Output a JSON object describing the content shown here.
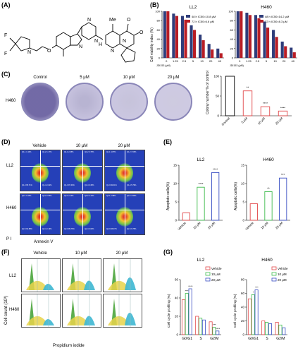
{
  "panel_labels": {
    "A": "(A)",
    "B": "(B)",
    "C": "(C)",
    "D": "(D)",
    "E": "(E)",
    "F": "(F)",
    "G": "(G)"
  },
  "chemistry": {
    "F1": "F",
    "F2": "F",
    "N1": "N",
    "N2": "N",
    "N3": "N",
    "N4": "N",
    "N5": "N",
    "N6": "N",
    "O1": "O",
    "O2": "O",
    "O3": "O",
    "H": "H",
    "Me": "Me"
  },
  "B": {
    "ylabel": "Cell viability index (%)",
    "xlabel": "JDI153 (μM)",
    "categories": [
      "0",
      "1.25",
      "2.5",
      "5",
      "10",
      "20",
      "40"
    ],
    "yticks": [
      "0",
      "20",
      "40",
      "60",
      "80",
      "100"
    ],
    "colors": {
      "h48": "#2f3d7a",
      "h72": "#b81d25"
    },
    "charts": [
      {
        "title": "LL2",
        "legend": [
          "48 h IC50=10.8 μM",
          "72 h IC50=6.6 μM"
        ],
        "series": [
          {
            "name": "48 h IC50=10.8 μM",
            "values": [
              100,
              95,
              90,
              70,
              50,
              30,
              20
            ]
          },
          {
            "name": "72 h IC50=6.6 μM",
            "values": [
              100,
              90,
              82,
              60,
              38,
              18,
              10
            ]
          }
        ]
      },
      {
        "title": "H460",
        "legend": [
          "48 h IC50=14.2 μM",
          "72 h IC50=8.3 μM"
        ],
        "series": [
          {
            "name": "48 h IC50=14.2 μM",
            "values": [
              100,
              97,
              92,
              78,
              60,
              35,
              22
            ]
          },
          {
            "name": "72 h IC50=8.3 μM",
            "values": [
              100,
              92,
              85,
              65,
              45,
              25,
              12
            ]
          }
        ]
      }
    ]
  },
  "C": {
    "row_label": "H460",
    "columns": [
      "Control",
      "5 μM",
      "10 μM",
      "20 μM"
    ],
    "colony_coverage": [
      1.0,
      0.3,
      0.15,
      0.08
    ]
  },
  "chart_data": [
    {
      "type": "bar",
      "title": "",
      "ylabel": "Colony number % of control",
      "categories": [
        "Control",
        "5 μM",
        "10 μM",
        "20 μM"
      ],
      "values": [
        100,
        63,
        23,
        12
      ],
      "ylim": [
        0,
        100
      ],
      "significance": [
        "",
        "**",
        "****",
        "****"
      ]
    },
    {
      "type": "bar",
      "title": "LL2",
      "ylabel": "Apoptotic cells(%)",
      "categories": [
        "Vehicle",
        "10 μM",
        "20 μM"
      ],
      "values": [
        2,
        9,
        13
      ],
      "ylim": [
        0,
        15
      ],
      "yticks": [
        "0",
        "5",
        "10",
        "15"
      ],
      "significance": [
        "",
        "****",
        "****"
      ]
    },
    {
      "type": "bar",
      "title": "H460",
      "ylabel": "Apoptotic cells(%)",
      "categories": [
        "Vehicle",
        "10 μM",
        "20 μM"
      ],
      "values": [
        4.5,
        7.8,
        11.5
      ],
      "ylim": [
        0,
        15
      ],
      "yticks": [
        "0",
        "5",
        "10",
        "15"
      ],
      "significance": [
        "",
        "**",
        "***"
      ]
    },
    {
      "type": "bar",
      "title": "LL2",
      "ylabel": "Cell cycle profiling (%)",
      "categories": [
        "G0/G1",
        "S",
        "G2/M"
      ],
      "yticks": [
        "0",
        "20",
        "40",
        "60"
      ],
      "ylim": [
        0,
        60
      ],
      "series": [
        {
          "name": "Vehicle",
          "values": [
            38,
            20,
            14
          ]
        },
        {
          "name": "10 μM",
          "values": [
            45,
            18,
            8
          ]
        },
        {
          "name": "20 μM",
          "values": [
            50,
            16,
            4
          ]
        }
      ],
      "significance": [
        [
          "",
          "****",
          "****"
        ],
        [
          "",
          "",
          ""
        ],
        [
          "",
          "***",
          "****"
        ]
      ]
    },
    {
      "type": "bar",
      "title": "H460",
      "ylabel": "Cell cycle profiling (%)",
      "categories": [
        "G0/G1",
        "S",
        "G2/M"
      ],
      "yticks": [
        "0",
        "20",
        "40",
        "60",
        "80"
      ],
      "ylim": [
        0,
        80
      ],
      "series": [
        {
          "name": "Vehicle",
          "values": [
            52,
            20,
            18
          ]
        },
        {
          "name": "10 μM",
          "values": [
            58,
            18,
            14
          ]
        },
        {
          "name": "20 μM",
          "values": [
            65,
            16,
            10
          ]
        }
      ],
      "significance": [
        [
          "",
          "*",
          "***"
        ],
        [
          "",
          "",
          ""
        ],
        [
          "",
          "",
          ""
        ]
      ]
    }
  ],
  "D": {
    "columns": [
      "Vehicle",
      "10 μM",
      "20 μM"
    ],
    "rows": [
      "LL2",
      "H460"
    ],
    "xlabel": "Annexin V",
    "ylabel": "P I",
    "quads": [
      [
        [
          "Q1-1 1.10%",
          "Q1-2 1.17%",
          "Q1-3 95.71%",
          "Q1-4 2.02%"
        ],
        [
          "Q1-1 2.45%",
          "Q1-2 3.76%",
          "Q1-3 87.40%",
          "Q1-4 6.39%"
        ],
        [
          "Q1-1 4.87%",
          "Q1-2 7.03%",
          "Q1-3 82.31%",
          "Q1-4 5.79%"
        ]
      ],
      [
        [
          "Q2-1 0.43%",
          "Q2-2 2.53%",
          "Q2-3 94.88%",
          "Q2-4 2.16%"
        ],
        [
          "Q2-1 2.12%",
          "Q2-2 2.12%",
          "Q2-3 89.76%",
          "Q2-4 6.00%"
        ],
        [
          "Q2-1 2.68%",
          "Q2-2 4.50%",
          "Q2-3 83.07%",
          "Q2-4 9.75%"
        ]
      ]
    ]
  },
  "E": {
    "panels": [
      "LL2",
      "H460"
    ]
  },
  "F": {
    "columns": [
      "Vehicle",
      "10 μM",
      "20 μM"
    ],
    "rows": [
      "LL2",
      "H460"
    ],
    "ylabel": "Cell count (10³)",
    "xlabel": "Propidium iodide"
  },
  "G": {
    "legend": [
      "Vehicle",
      "10 μM",
      "20 μM"
    ],
    "colors": {
      "vehicle": "#e2484a",
      "m10": "#3dbb4c",
      "m20": "#3a4fc4"
    }
  }
}
